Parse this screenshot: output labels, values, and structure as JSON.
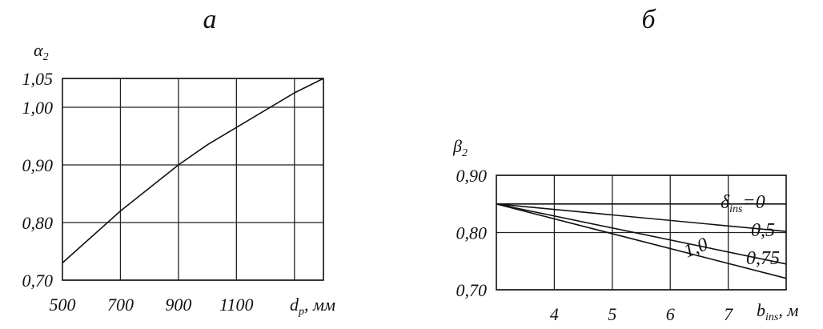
{
  "chart_data": [
    {
      "type": "line",
      "title": "а",
      "ylabel": {
        "symbol": "α",
        "subscript": "2"
      },
      "xlabel": {
        "symbol": "d",
        "subscript": "p",
        "unit": ", мм"
      },
      "x": [
        500,
        600,
        700,
        800,
        900,
        1000,
        1100,
        1200,
        1300,
        1400
      ],
      "series": [
        {
          "name": "α2",
          "color": "#111111",
          "values": [
            0.73,
            0.775,
            0.82,
            0.86,
            0.9,
            0.935,
            0.965,
            0.995,
            1.025,
            1.05
          ]
        }
      ],
      "xlim": [
        500,
        1400
      ],
      "ylim": [
        0.7,
        1.05
      ],
      "xticks": [
        500,
        700,
        900,
        1100
      ],
      "xgrid": [
        700,
        900,
        1100,
        1300
      ],
      "yticks": [
        {
          "value": 0.7,
          "label": "0,70"
        },
        {
          "value": 0.8,
          "label": "0,80"
        },
        {
          "value": 0.9,
          "label": "0,90"
        },
        {
          "value": 1.0,
          "label": "1,00"
        },
        {
          "value": 1.05,
          "label": "1,05"
        }
      ],
      "grid": true
    },
    {
      "type": "line",
      "title": "б",
      "ylabel": {
        "symbol": "β",
        "subscript": "2"
      },
      "xlabel": {
        "symbol": "b",
        "subscript": "ins",
        "unit": ", м"
      },
      "legend_prefix": [
        "δ",
        "ins",
        "="
      ],
      "x": [
        3,
        8
      ],
      "series": [
        {
          "name": "0",
          "color": "#111111",
          "values": [
            0.85,
            0.85
          ]
        },
        {
          "name": "0,5",
          "color": "#111111",
          "values": [
            0.85,
            0.802
          ]
        },
        {
          "name": "0,75",
          "color": "#111111",
          "values": [
            0.85,
            0.745
          ]
        },
        {
          "name": "1,0",
          "color": "#111111",
          "values": [
            0.85,
            0.72
          ]
        }
      ],
      "xlim": [
        3,
        8
      ],
      "ylim": [
        0.7,
        0.9
      ],
      "xticks": [
        4,
        5,
        6,
        7
      ],
      "xgrid": [
        4,
        5,
        6,
        7
      ],
      "yticks": [
        {
          "value": 0.7,
          "label": "0,70"
        },
        {
          "value": 0.8,
          "label": "0,80"
        },
        {
          "value": 0.9,
          "label": "0,90"
        }
      ],
      "ygrid": [
        0.85
      ],
      "grid": true
    }
  ]
}
